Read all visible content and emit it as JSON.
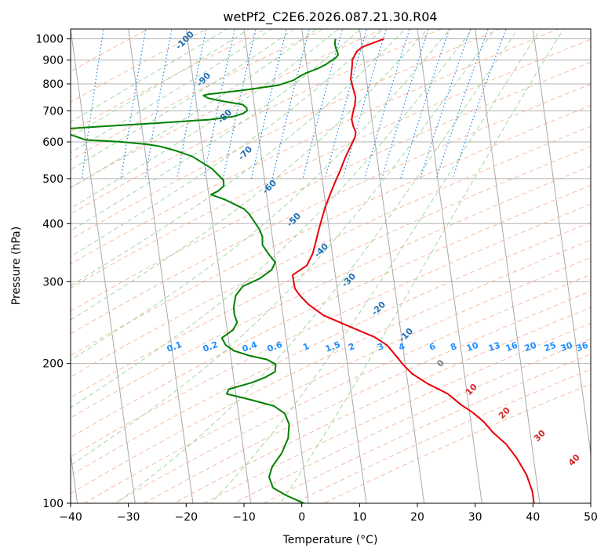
{
  "chart_data": {
    "type": "line",
    "title": "wetPf2_C2E6.2026.087.21.30.R04",
    "xlabel": "Temperature (°C)",
    "ylabel": "Pressure (hPa)",
    "xlim": [
      -40,
      50
    ],
    "ylim": [
      1050,
      100
    ],
    "y_scale": "log",
    "grid": true,
    "x_ticks": [
      -40,
      -30,
      -20,
      -10,
      0,
      10,
      20,
      30,
      40,
      50
    ],
    "x_tick_labels": [
      "−40",
      "−30",
      "−20",
      "−10",
      "0",
      "10",
      "20",
      "30",
      "40",
      "50"
    ],
    "y_ticks": [
      100,
      200,
      300,
      400,
      500,
      600,
      700,
      800,
      900,
      1000
    ],
    "y_tick_labels": [
      "100",
      "200",
      "300",
      "400",
      "500",
      "600",
      "700",
      "800",
      "900",
      "1000"
    ],
    "series": [
      {
        "color": "#e8000b",
        "points": [
          [
            14,
            1000
          ],
          [
            10,
            960
          ],
          [
            9,
            940
          ],
          [
            8.5,
            920
          ],
          [
            8,
            900
          ],
          [
            7.9,
            880
          ],
          [
            7.7,
            860
          ],
          [
            7.3,
            820
          ],
          [
            7.5,
            780
          ],
          [
            7.7,
            750
          ],
          [
            7.4,
            720
          ],
          [
            6.8,
            690
          ],
          [
            6.5,
            670
          ],
          [
            6.6,
            650
          ],
          [
            6.9,
            630
          ],
          [
            6.7,
            615
          ],
          [
            5.8,
            590
          ],
          [
            4.5,
            555
          ],
          [
            3.3,
            520
          ],
          [
            2.3,
            495
          ],
          [
            1.1,
            465
          ],
          [
            -0.1,
            435
          ],
          [
            -1.0,
            410
          ],
          [
            -1.9,
            385
          ],
          [
            -2.6,
            365
          ],
          [
            -3.4,
            345
          ],
          [
            -4.7,
            325
          ],
          [
            -7.4,
            310
          ],
          [
            -7.3,
            290
          ],
          [
            -6.6,
            280
          ],
          [
            -5.3,
            268
          ],
          [
            -3.0,
            254
          ],
          [
            1.3,
            240
          ],
          [
            5.3,
            228
          ],
          [
            7.3,
            219
          ],
          [
            8.7,
            207
          ],
          [
            9.6,
            199
          ],
          [
            11.0,
            190
          ],
          [
            13.4,
            181
          ],
          [
            16.7,
            172
          ],
          [
            18.7,
            163
          ],
          [
            20.5,
            157
          ],
          [
            22.2,
            150
          ],
          [
            23.6,
            142
          ],
          [
            25.6,
            134
          ],
          [
            27.1,
            125
          ],
          [
            28.4,
            115
          ],
          [
            29.0,
            106
          ],
          [
            29.0,
            100
          ]
        ]
      },
      {
        "color": "#008000",
        "points": [
          [
            5.6,
            1000
          ],
          [
            5.4,
            980
          ],
          [
            5.4,
            960
          ],
          [
            5.6,
            940
          ],
          [
            5.7,
            925
          ],
          [
            5.2,
            910
          ],
          [
            4.2,
            895
          ],
          [
            3.3,
            880
          ],
          [
            2.0,
            865
          ],
          [
            -0.2,
            845
          ],
          [
            -1.5,
            830
          ],
          [
            -2.6,
            815
          ],
          [
            -5.3,
            795
          ],
          [
            -11.6,
            775
          ],
          [
            -17.7,
            760
          ],
          [
            -18.6,
            755
          ],
          [
            -17.8,
            745
          ],
          [
            -15.6,
            735
          ],
          [
            -12.0,
            722
          ],
          [
            -11.4,
            710
          ],
          [
            -11.4,
            700
          ],
          [
            -12.2,
            690
          ],
          [
            -14.0,
            680
          ],
          [
            -18.1,
            670
          ],
          [
            -26.1,
            660
          ],
          [
            -36.8,
            648
          ],
          [
            -45.0,
            638
          ],
          [
            -40,
            606
          ],
          [
            -33.9,
            600
          ],
          [
            -29.6,
            593
          ],
          [
            -27.6,
            588
          ],
          [
            -24.8,
            575
          ],
          [
            -21.9,
            558
          ],
          [
            -18.8,
            525
          ],
          [
            -17.1,
            496
          ],
          [
            -17.2,
            482
          ],
          [
            -18.3,
            470
          ],
          [
            -19.6,
            462
          ],
          [
            -17.2,
            450
          ],
          [
            -15.7,
            440
          ],
          [
            -14.2,
            430
          ],
          [
            -13.5,
            420
          ],
          [
            -12.8,
            405
          ],
          [
            -12.1,
            390
          ],
          [
            -11.7,
            375
          ],
          [
            -11.9,
            360
          ],
          [
            -11.1,
            345
          ],
          [
            -10.1,
            330
          ],
          [
            -10.9,
            318
          ],
          [
            -13.1,
            305
          ],
          [
            -16.3,
            293
          ],
          [
            -17.7,
            280
          ],
          [
            -18.3,
            265
          ],
          [
            -18.4,
            255
          ],
          [
            -18.1,
            245
          ],
          [
            -19.0,
            236
          ],
          [
            -21.1,
            227
          ],
          [
            -20.6,
            219
          ],
          [
            -19.3,
            213
          ],
          [
            -16.8,
            208
          ],
          [
            -13.8,
            204
          ],
          [
            -12.4,
            199
          ],
          [
            -12.7,
            192
          ],
          [
            -14.4,
            187
          ],
          [
            -16.9,
            182
          ],
          [
            -21.1,
            176
          ],
          [
            -21.6,
            172
          ],
          [
            -17.5,
            167
          ],
          [
            -13.7,
            162
          ],
          [
            -12.0,
            156
          ],
          [
            -11.5,
            148
          ],
          [
            -12.0,
            138
          ],
          [
            -13.5,
            128
          ],
          [
            -15.4,
            120
          ],
          [
            -16.2,
            114
          ],
          [
            -15.8,
            108
          ],
          [
            -13.7,
            104
          ],
          [
            -10.8,
            100
          ]
        ]
      }
    ],
    "dry_adiabat_labels": [
      "-100",
      "-90",
      "-80",
      "-70",
      "-60",
      "-50",
      "-40",
      "-30",
      "-20",
      "-10"
    ],
    "moist_adiabat_labels": [
      "10",
      "20",
      "30",
      "40"
    ],
    "zero_label": "0",
    "mixing_ratio_labels": [
      "0.1",
      "0.2",
      "0.4",
      "0.6",
      "1",
      "1.5",
      "2",
      "3",
      "4",
      "6",
      "8",
      "10",
      "13",
      "16",
      "20",
      "25",
      "30",
      "36"
    ],
    "mixing_ratio_values": [
      0.1,
      0.2,
      0.4,
      0.6,
      1,
      1.5,
      2,
      3,
      4,
      6,
      8,
      10,
      13,
      16,
      20,
      25,
      30,
      36
    ],
    "colors": {
      "temperature": "#e8000b",
      "dewpoint": "#008000",
      "dry_adiabats": "#f4a582",
      "moist_adiabats": "#98d29a",
      "mixing_ratio": "#1e88e5",
      "isotherms": "#a9a9a9",
      "grid": "#b0b0b0"
    }
  }
}
